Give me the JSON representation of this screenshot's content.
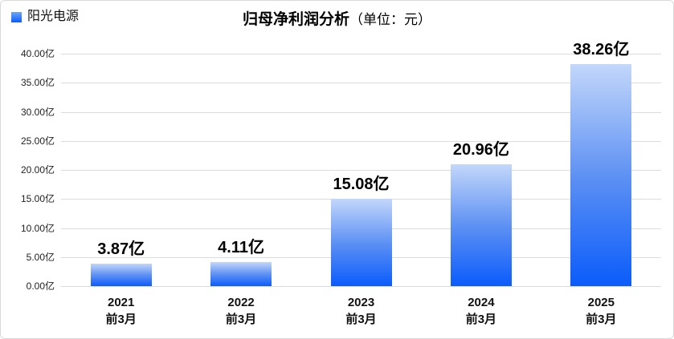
{
  "legend": {
    "label": "阳光电源",
    "swatch_color": "#0b5cfb"
  },
  "title": {
    "main": "归母净利润分析",
    "unit": "（单位：元）"
  },
  "colors": {
    "bar_gradient_top": "#c3d7fa",
    "bar_gradient_mid": "#5b8ff3",
    "bar_gradient_bottom": "#0b5cfb",
    "gridline": "#dcdcdc",
    "card_border": "#d9d9d9",
    "background": "#ffffff"
  },
  "chart_data": {
    "type": "bar",
    "title": "归母净利润分析（单位：元）",
    "series_name": "阳光电源",
    "categories": [
      {
        "year": "2021",
        "period": "前3月"
      },
      {
        "year": "2022",
        "period": "前3月"
      },
      {
        "year": "2023",
        "period": "前3月"
      },
      {
        "year": "2024",
        "period": "前3月"
      },
      {
        "year": "2025",
        "period": "前3月"
      }
    ],
    "values": [
      3.87,
      4.11,
      15.08,
      20.96,
      38.26
    ],
    "data_labels": [
      "3.87亿",
      "4.11亿",
      "15.08亿",
      "20.96亿",
      "38.26亿"
    ],
    "y_ticks": [
      0,
      5,
      10,
      15,
      20,
      25,
      30,
      35,
      40
    ],
    "y_tick_labels": [
      "0.00亿",
      "5.00亿",
      "10.00亿",
      "15.00亿",
      "20.00亿",
      "25.00亿",
      "30.00亿",
      "35.00亿",
      "40.00亿"
    ],
    "ylim": [
      0,
      40
    ],
    "grid": true,
    "legend_position": "top-left"
  }
}
